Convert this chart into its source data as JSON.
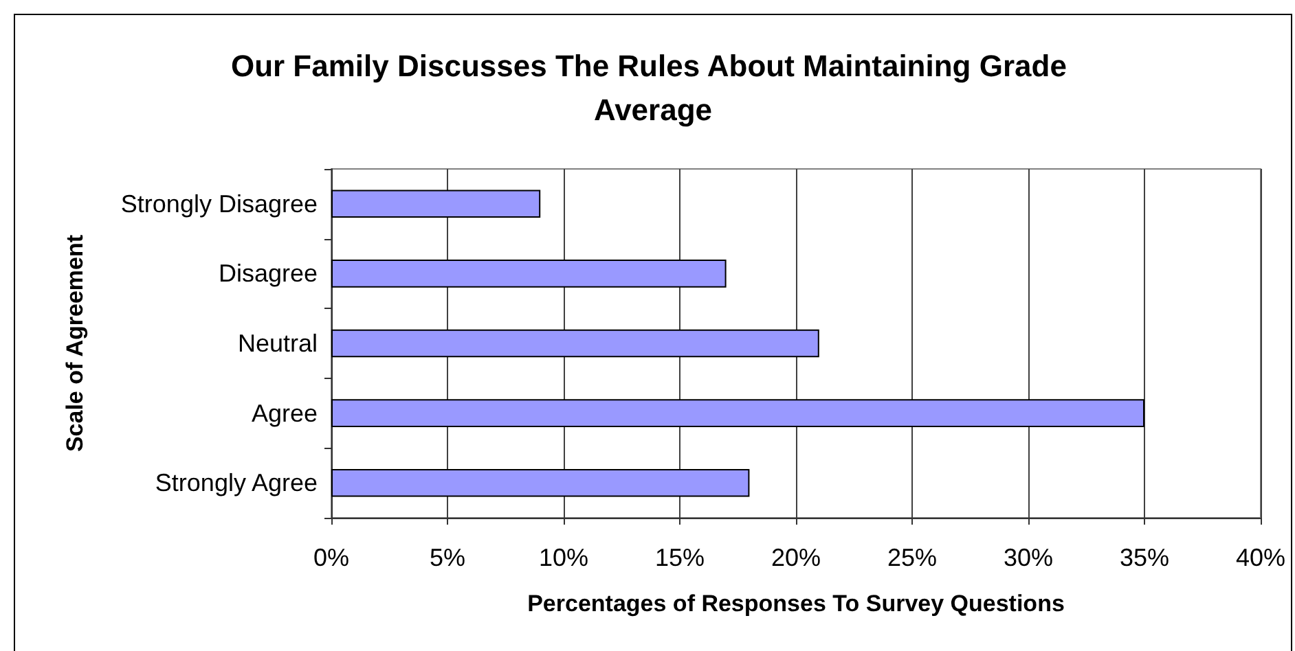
{
  "chart_data": {
    "type": "bar",
    "orientation": "horizontal",
    "title": "Our Family Discusses The Rules About Maintaining Grade Average",
    "xlabel": "Percentages of Responses To Survey Questions",
    "ylabel": "Scale of Agreement",
    "categories": [
      "Strongly Disagree",
      "Disagree",
      "Neutral",
      "Agree",
      "Strongly Agree"
    ],
    "values": [
      9,
      17,
      21,
      35,
      18
    ],
    "color": "#9999ff",
    "xlim": [
      0,
      40
    ],
    "xticks": [
      {
        "value": 0,
        "label": "0%"
      },
      {
        "value": 5,
        "label": "5%"
      },
      {
        "value": 10,
        "label": "10%"
      },
      {
        "value": 15,
        "label": "15%"
      },
      {
        "value": 20,
        "label": "20%"
      },
      {
        "value": 25,
        "label": "25%"
      },
      {
        "value": 30,
        "label": "30%"
      },
      {
        "value": 35,
        "label": "35%"
      },
      {
        "value": 40,
        "label": "40%"
      }
    ],
    "grid": "x"
  }
}
